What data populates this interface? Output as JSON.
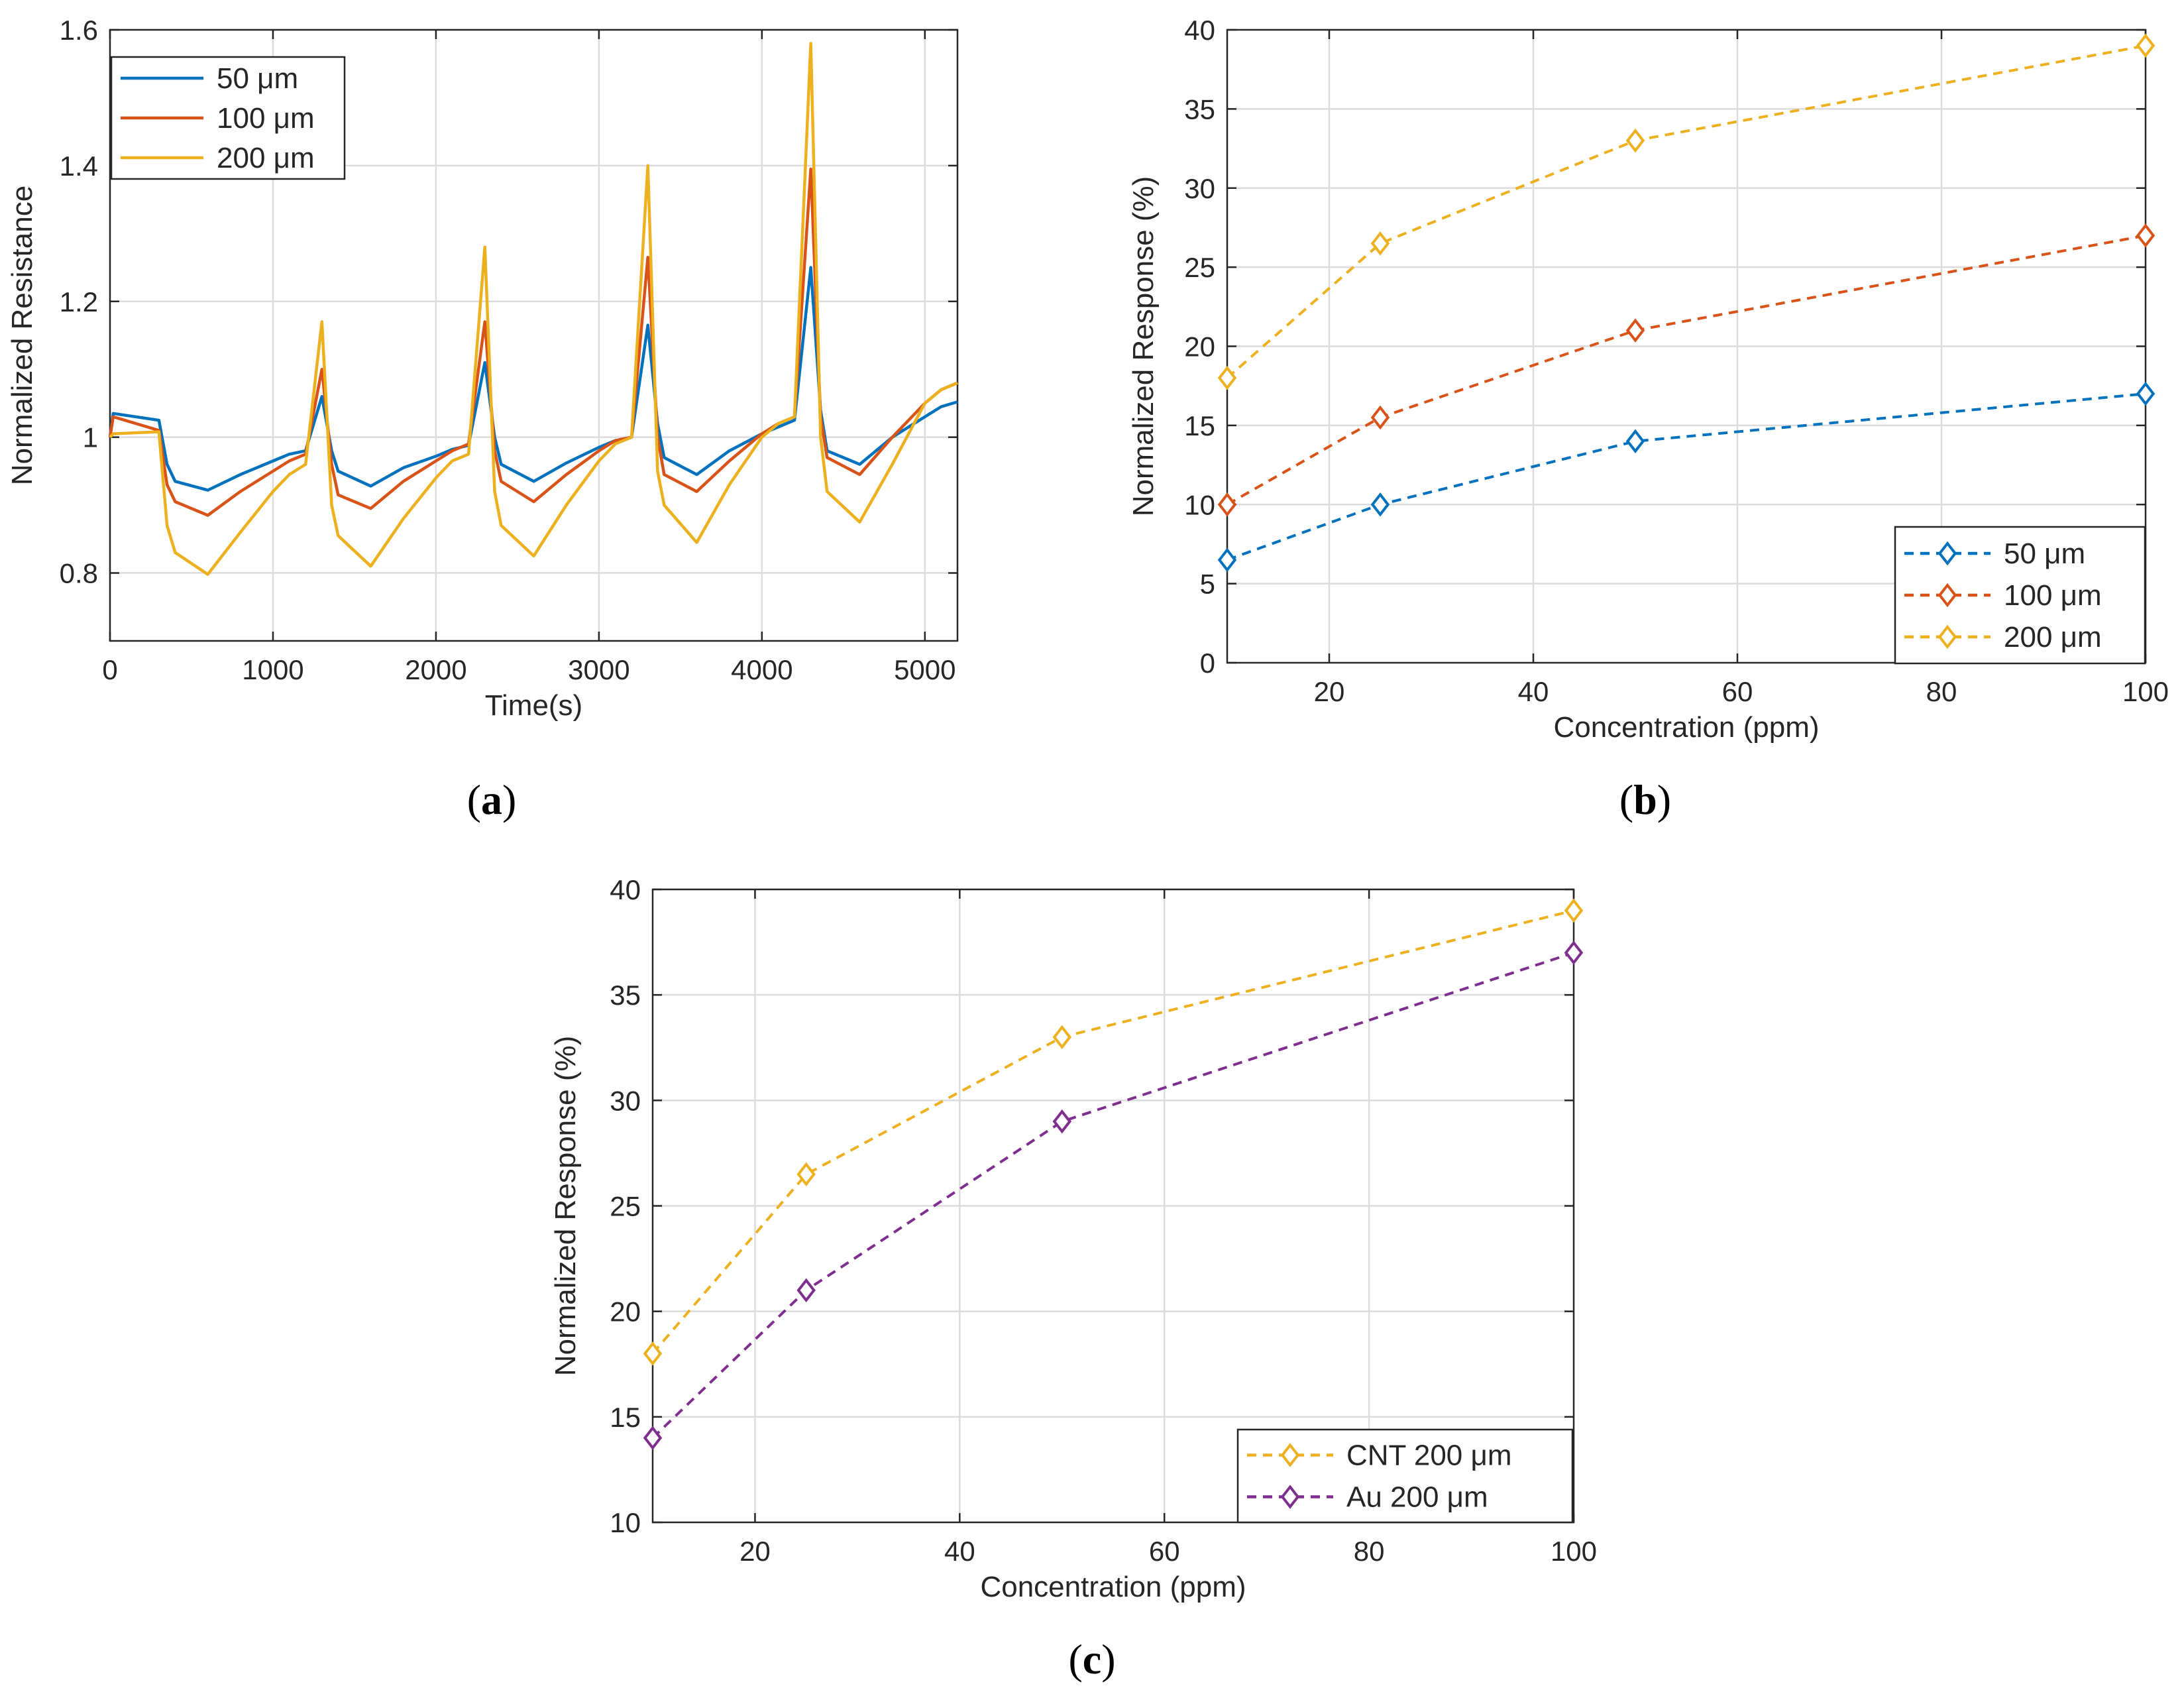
{
  "chart_data": [
    {
      "id": "a",
      "type": "line",
      "panel_label": "a",
      "xlabel": "Time(s)",
      "ylabel": "Normalized Resistance",
      "xlim": [
        0,
        5200
      ],
      "ylim": [
        0.7,
        1.6
      ],
      "xticks": [
        0,
        1000,
        2000,
        3000,
        4000,
        5000
      ],
      "xtick_labels": [
        "0",
        "1000",
        "2000",
        "3000",
        "4000",
        "5000"
      ],
      "yticks": [
        0.8,
        1.0,
        1.2,
        1.4,
        1.6
      ],
      "ytick_labels": [
        "0.8",
        "1",
        "1.2",
        "1.4",
        "1.6"
      ],
      "grid": true,
      "legend_position": "top-left",
      "series": [
        {
          "name": "50 μm",
          "color": "#0072bd",
          "cycle_peaks": [
            1.06,
            1.11,
            1.165,
            1.25
          ],
          "cycle_troughs": [
            0.922,
            0.928,
            0.935,
            0.945,
            0.96
          ],
          "x": [
            0,
            20,
            300,
            350,
            400,
            600,
            800,
            1000,
            1100,
            1200,
            1300,
            1360,
            1400,
            1600,
            1800,
            2000,
            2100,
            2200,
            2300,
            2360,
            2400,
            2600,
            2800,
            3000,
            3100,
            3200,
            3300,
            3360,
            3400,
            3600,
            3800,
            4000,
            4100,
            4200,
            4300,
            4360,
            4400,
            4600,
            4800,
            5000,
            5100,
            5200
          ],
          "y": [
            1.0,
            1.035,
            1.025,
            0.96,
            0.935,
            0.922,
            0.945,
            0.965,
            0.975,
            0.98,
            1.06,
            0.98,
            0.95,
            0.928,
            0.955,
            0.972,
            0.982,
            0.988,
            1.11,
            1.0,
            0.96,
            0.935,
            0.962,
            0.985,
            0.995,
            1.0,
            1.165,
            1.02,
            0.97,
            0.945,
            0.98,
            1.005,
            1.015,
            1.025,
            1.25,
            1.04,
            0.98,
            0.96,
            1.0,
            1.03,
            1.045,
            1.052
          ]
        },
        {
          "name": "100 μm",
          "color": "#d95319",
          "cycle_peaks": [
            1.1,
            1.17,
            1.265,
            1.395
          ],
          "cycle_troughs": [
            0.885,
            0.895,
            0.905,
            0.92,
            0.945
          ],
          "x": [
            0,
            20,
            300,
            350,
            400,
            600,
            800,
            1000,
            1100,
            1200,
            1300,
            1360,
            1400,
            1600,
            1800,
            2000,
            2100,
            2200,
            2300,
            2360,
            2400,
            2600,
            2800,
            3000,
            3100,
            3200,
            3300,
            3360,
            3400,
            3600,
            3800,
            4000,
            4100,
            4200,
            4300,
            4360,
            4400,
            4600,
            4800,
            5000,
            5100,
            5200
          ],
          "y": [
            1.0,
            1.03,
            1.01,
            0.93,
            0.905,
            0.885,
            0.92,
            0.95,
            0.965,
            0.975,
            1.1,
            0.96,
            0.915,
            0.895,
            0.935,
            0.965,
            0.98,
            0.99,
            1.17,
            0.98,
            0.935,
            0.905,
            0.945,
            0.98,
            0.995,
            1.0,
            1.265,
            1.0,
            0.945,
            0.92,
            0.965,
            1.005,
            1.02,
            1.03,
            1.395,
            1.03,
            0.97,
            0.945,
            1.0,
            1.05,
            1.07,
            1.08
          ]
        },
        {
          "name": "200 μm",
          "color": "#edb120",
          "cycle_peaks": [
            1.17,
            1.28,
            1.4,
            1.58
          ],
          "cycle_troughs": [
            0.798,
            0.81,
            0.825,
            0.845,
            0.875
          ],
          "x": [
            0,
            20,
            300,
            350,
            400,
            600,
            800,
            1000,
            1100,
            1200,
            1300,
            1360,
            1400,
            1600,
            1800,
            2000,
            2100,
            2200,
            2300,
            2360,
            2400,
            2600,
            2800,
            3000,
            3100,
            3200,
            3300,
            3360,
            3400,
            3600,
            3800,
            4000,
            4100,
            4200,
            4300,
            4360,
            4400,
            4600,
            4800,
            5000,
            5100,
            5200
          ],
          "y": [
            1.0,
            1.005,
            1.008,
            0.87,
            0.83,
            0.798,
            0.86,
            0.92,
            0.945,
            0.96,
            1.17,
            0.9,
            0.855,
            0.81,
            0.88,
            0.94,
            0.965,
            0.975,
            1.28,
            0.92,
            0.87,
            0.825,
            0.9,
            0.965,
            0.99,
            1.0,
            1.4,
            0.95,
            0.9,
            0.845,
            0.93,
            1.0,
            1.02,
            1.03,
            1.58,
            1.0,
            0.92,
            0.875,
            0.96,
            1.05,
            1.07,
            1.08
          ]
        }
      ]
    },
    {
      "id": "b",
      "type": "line",
      "panel_label": "b",
      "xlabel": "Concentration (ppm)",
      "ylabel": "Normalized Response (%)",
      "xlim": [
        10,
        100
      ],
      "ylim": [
        0,
        40
      ],
      "xticks": [
        20,
        40,
        60,
        80,
        100
      ],
      "xtick_labels": [
        "20",
        "40",
        "60",
        "80",
        "100"
      ],
      "yticks": [
        0,
        5,
        10,
        15,
        20,
        25,
        30,
        35,
        40
      ],
      "ytick_labels": [
        "0",
        "5",
        "10",
        "15",
        "20",
        "25",
        "30",
        "35",
        "40"
      ],
      "grid": true,
      "legend_position": "bottom-right",
      "x": [
        10,
        25,
        50,
        100
      ],
      "series": [
        {
          "name": "50 μm",
          "color": "#0072bd",
          "values": [
            6.5,
            10,
            14,
            17
          ]
        },
        {
          "name": "100 μm",
          "color": "#d95319",
          "values": [
            10,
            15.5,
            21,
            27
          ]
        },
        {
          "name": "200 μm",
          "color": "#edb120",
          "values": [
            18,
            26.5,
            33,
            39
          ]
        }
      ]
    },
    {
      "id": "c",
      "type": "line",
      "panel_label": "c",
      "xlabel": "Concentration (ppm)",
      "ylabel": "Normalized Response (%)",
      "xlim": [
        10,
        100
      ],
      "ylim": [
        10,
        40
      ],
      "xticks": [
        20,
        40,
        60,
        80,
        100
      ],
      "xtick_labels": [
        "20",
        "40",
        "60",
        "80",
        "100"
      ],
      "yticks": [
        10,
        15,
        20,
        25,
        30,
        35,
        40
      ],
      "ytick_labels": [
        "10",
        "15",
        "20",
        "25",
        "30",
        "35",
        "40"
      ],
      "grid": true,
      "legend_position": "bottom-right",
      "x": [
        10,
        25,
        50,
        100
      ],
      "series": [
        {
          "name": "CNT 200 μm",
          "color": "#edb120",
          "values": [
            18,
            26.5,
            33,
            39
          ]
        },
        {
          "name": "Au 200 μm",
          "color": "#7e2f8e",
          "values": [
            14,
            21,
            29,
            37
          ]
        }
      ]
    }
  ]
}
